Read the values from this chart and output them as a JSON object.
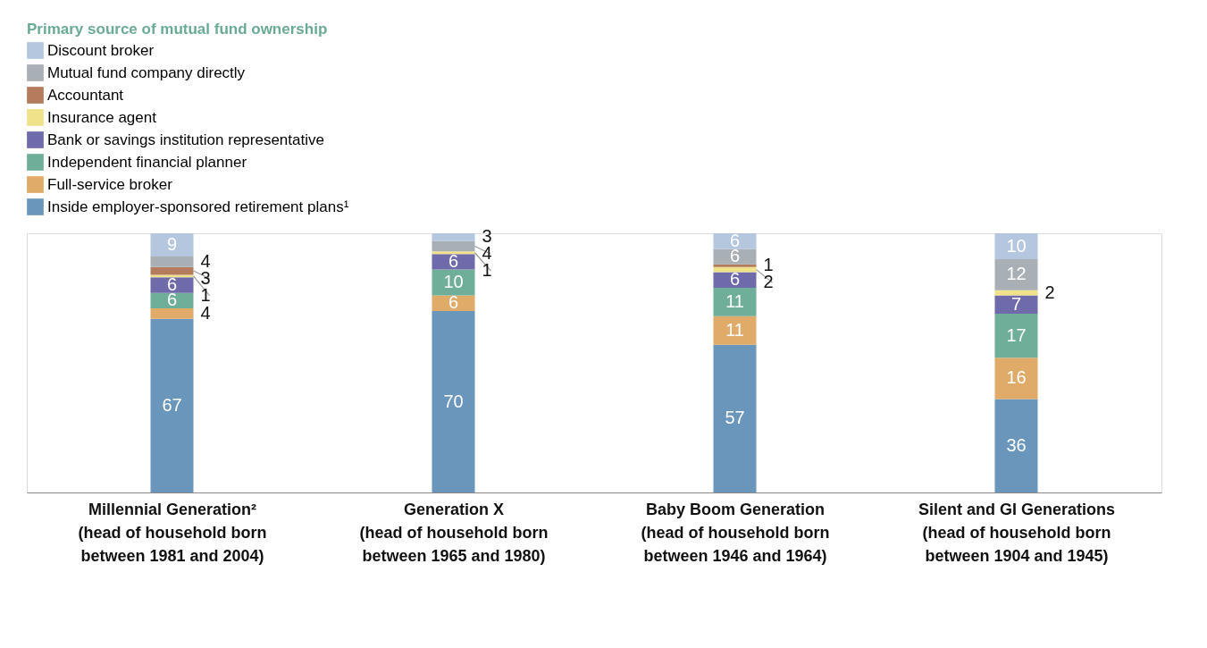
{
  "chart_data": {
    "type": "bar",
    "stacked": true,
    "legend_title": "Primary source of mutual fund ownership",
    "legend": "top left",
    "categories": [
      "Millennial Generation²\n(head of household born\nbetween 1981 and 2004)",
      "Generation X\n(head of household born\nbetween 1965 and 1980)",
      "Baby Boom Generation\n(head of household born\nbetween 1946 and 1964)",
      "Silent and GI Generations\n(head of household born\nbetween 1904 and 1945)"
    ],
    "series": [
      {
        "name": "Inside employer-sponsored retirement plans¹",
        "color": "#6a96bb",
        "values": [
          67,
          70,
          57,
          36
        ],
        "value_labels": [
          "67",
          "70",
          "57",
          "36"
        ]
      },
      {
        "name": "Full-service broker",
        "color": "#e0aa68",
        "values": [
          4,
          6,
          11,
          16
        ],
        "value_labels": [
          "4",
          "6",
          "11",
          "16"
        ]
      },
      {
        "name": "Independent financial planner",
        "color": "#6fae98",
        "values": [
          6,
          10,
          11,
          17
        ],
        "value_labels": [
          "6",
          "10",
          "11",
          "17"
        ]
      },
      {
        "name": "Bank or savings institution representative",
        "color": "#6f6aaa",
        "values": [
          6,
          6,
          6,
          7
        ],
        "value_labels": [
          "6",
          "6",
          "6",
          "7"
        ]
      },
      {
        "name": "Insurance agent",
        "color": "#efe28a",
        "values": [
          1,
          1,
          2,
          2
        ],
        "value_labels": [
          "1",
          "1",
          "2",
          "2"
        ]
      },
      {
        "name": "Accountant",
        "color": "#b47c5c",
        "values": [
          3,
          0,
          1,
          0
        ],
        "value_labels": [
          "3",
          null,
          "1",
          null
        ]
      },
      {
        "name": "Mutual fund company directly",
        "color": "#a8afb5",
        "values": [
          4,
          4,
          6,
          12
        ],
        "value_labels": [
          "4",
          "4",
          "6",
          "12"
        ]
      },
      {
        "name": "Discount broker",
        "color": "#b4c7de",
        "values": [
          9,
          3,
          6,
          10
        ],
        "value_labels": [
          "9",
          "3",
          "6",
          "10"
        ]
      }
    ]
  }
}
